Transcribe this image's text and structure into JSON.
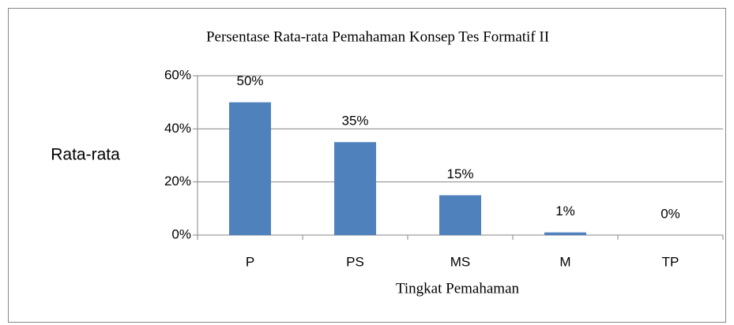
{
  "chart_data": {
    "type": "bar",
    "title": "Persentase Rata-rata Pemahaman Konsep Tes Formatif II",
    "x_label": "Tingkat Pemahaman",
    "y_label": "Rata-rata",
    "categories": [
      "P",
      "PS",
      "MS",
      "M",
      "TP"
    ],
    "values": [
      50,
      35,
      15,
      1,
      0
    ],
    "value_labels": [
      "50%",
      "35%",
      "15%",
      "1%",
      "0%"
    ],
    "color": "#4f81bd",
    "ylim": [
      0,
      60
    ],
    "yticks": [
      {
        "value": 0,
        "label": "0%"
      },
      {
        "value": 20,
        "label": "20%"
      },
      {
        "value": 40,
        "label": "40%"
      },
      {
        "value": 60,
        "label": "60%"
      }
    ],
    "grid": true
  }
}
